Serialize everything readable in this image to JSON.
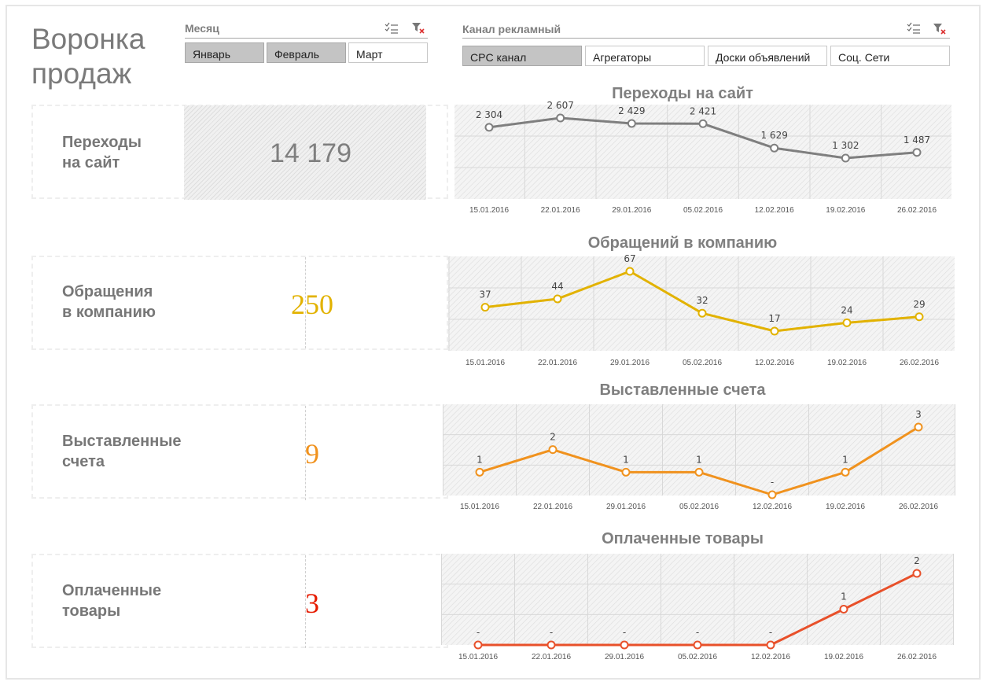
{
  "title": "Воронка продаж",
  "slicers": {
    "month": {
      "title": "Месяц",
      "items": [
        {
          "label": "Январь",
          "selected": true
        },
        {
          "label": "Февраль",
          "selected": true
        },
        {
          "label": "Март",
          "selected": false
        }
      ]
    },
    "channel": {
      "title": "Канал рекламный",
      "items": [
        {
          "label": "CPC канал",
          "selected": true
        },
        {
          "label": "Агрегаторы",
          "selected": false
        },
        {
          "label": "Доски объявлений",
          "selected": false
        },
        {
          "label": "Соц. Сети",
          "selected": false
        }
      ]
    },
    "icons": [
      "multi-select-icon",
      "clear-filter-icon"
    ]
  },
  "kpis": [
    {
      "label_line1": "Переходы",
      "label_line2": "на сайт",
      "value": "14 179",
      "color": "#7f7f7f"
    },
    {
      "label_line1": "Обращения",
      "label_line2": "в компанию",
      "value": "250",
      "color": "#e2b200"
    },
    {
      "label_line1": "Выставленные",
      "label_line2": "счета",
      "value": "9",
      "color": "#f0921e"
    },
    {
      "label_line1": "Оплаченные",
      "label_line2": "товары",
      "value": "3",
      "color": "#e61c00"
    }
  ],
  "chart_data": [
    {
      "type": "line",
      "title": "Переходы на сайт",
      "x": [
        "15.01.2016",
        "22.01.2016",
        "29.01.2016",
        "05.02.2016",
        "12.02.2016",
        "19.02.2016",
        "26.02.2016"
      ],
      "series": [
        {
          "values": [
            2304,
            2607,
            2429,
            2421,
            1629,
            1302,
            1487
          ]
        }
      ],
      "data_labels": [
        "2 304",
        "2 607",
        "2 429",
        "2 421",
        "1 629",
        "1 302",
        "1 487"
      ],
      "color": "#7f7f7f",
      "grid": true
    },
    {
      "type": "line",
      "title": "Обращений в компанию",
      "x": [
        "15.01.2016",
        "22.01.2016",
        "29.01.2016",
        "05.02.2016",
        "12.02.2016",
        "19.02.2016",
        "26.02.2016"
      ],
      "series": [
        {
          "values": [
            37,
            44,
            67,
            32,
            17,
            24,
            29
          ]
        }
      ],
      "data_labels": [
        "37",
        "44",
        "67",
        "32",
        "17",
        "24",
        "29"
      ],
      "color": "#e2b200",
      "grid": true
    },
    {
      "type": "line",
      "title": "Выставленные счета",
      "x": [
        "15.01.2016",
        "22.01.2016",
        "29.01.2016",
        "05.02.2016",
        "12.02.2016",
        "19.02.2016",
        "26.02.2016"
      ],
      "series": [
        {
          "values": [
            1,
            2,
            1,
            1,
            0,
            1,
            3
          ]
        }
      ],
      "data_labels": [
        "1",
        "2",
        "1",
        "1",
        "-",
        "1",
        "3"
      ],
      "color": "#f0921e",
      "grid": true
    },
    {
      "type": "line",
      "title": "Оплаченные товары",
      "x": [
        "15.01.2016",
        "22.01.2016",
        "29.01.2016",
        "05.02.2016",
        "12.02.2016",
        "19.02.2016",
        "26.02.2016"
      ],
      "series": [
        {
          "values": [
            0,
            0,
            0,
            0,
            0,
            1,
            2
          ]
        }
      ],
      "data_labels": [
        "-",
        "-",
        "-",
        "-",
        "-",
        "1",
        "2"
      ],
      "color": "#e8502a",
      "grid": true
    }
  ]
}
